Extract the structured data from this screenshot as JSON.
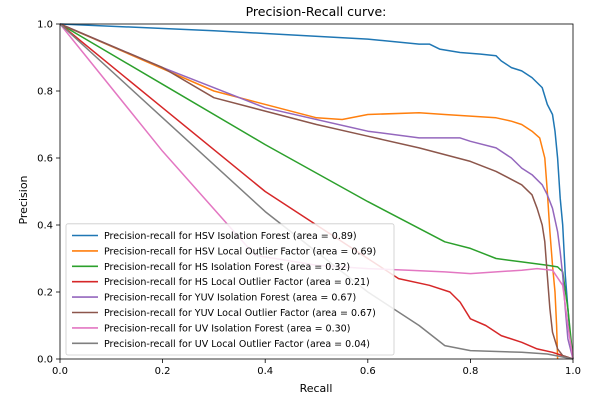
{
  "chart_data": {
    "type": "line",
    "title": "Precision-Recall curve:",
    "xlabel": "Recall",
    "ylabel": "Precision",
    "xlim": [
      0,
      1
    ],
    "ylim": [
      0,
      1
    ],
    "x_ticks": [
      "0.0",
      "0.2",
      "0.4",
      "0.6",
      "0.8",
      "1.0"
    ],
    "y_ticks": [
      "0.0",
      "0.2",
      "0.4",
      "0.6",
      "0.8",
      "1.0"
    ],
    "grid": false,
    "legend_position": "lower-left",
    "series": [
      {
        "name": "Precision-recall for HSV Isolation Forest (area = 0.89)",
        "color": "#1f77b4",
        "points": [
          [
            0.0,
            1.0
          ],
          [
            0.3,
            0.98
          ],
          [
            0.6,
            0.955
          ],
          [
            0.7,
            0.94
          ],
          [
            0.72,
            0.94
          ],
          [
            0.74,
            0.925
          ],
          [
            0.78,
            0.915
          ],
          [
            0.82,
            0.91
          ],
          [
            0.85,
            0.905
          ],
          [
            0.86,
            0.89
          ],
          [
            0.88,
            0.87
          ],
          [
            0.9,
            0.86
          ],
          [
            0.92,
            0.84
          ],
          [
            0.94,
            0.81
          ],
          [
            0.95,
            0.76
          ],
          [
            0.96,
            0.73
          ],
          [
            0.965,
            0.68
          ],
          [
            0.97,
            0.6
          ],
          [
            0.975,
            0.48
          ],
          [
            0.98,
            0.4
          ],
          [
            0.985,
            0.25
          ],
          [
            0.99,
            0.15
          ],
          [
            0.995,
            0.06
          ],
          [
            1.0,
            0.0
          ]
        ]
      },
      {
        "name": "Precision-recall for HSV Local Outlier Factor (area = 0.69)",
        "color": "#ff7f0e",
        "points": [
          [
            0.0,
            1.0
          ],
          [
            0.3,
            0.8
          ],
          [
            0.5,
            0.72
          ],
          [
            0.55,
            0.715
          ],
          [
            0.6,
            0.73
          ],
          [
            0.7,
            0.735
          ],
          [
            0.75,
            0.73
          ],
          [
            0.8,
            0.725
          ],
          [
            0.85,
            0.72
          ],
          [
            0.88,
            0.71
          ],
          [
            0.9,
            0.7
          ],
          [
            0.92,
            0.68
          ],
          [
            0.935,
            0.66
          ],
          [
            0.945,
            0.6
          ],
          [
            0.95,
            0.5
          ],
          [
            0.955,
            0.38
          ],
          [
            0.96,
            0.28
          ],
          [
            0.965,
            0.2
          ],
          [
            0.968,
            0.1
          ],
          [
            0.97,
            0.0
          ]
        ]
      },
      {
        "name": "Precision-recall for HS Isolation Forest (area = 0.32)",
        "color": "#2ca02c",
        "points": [
          [
            0.0,
            1.0
          ],
          [
            0.2,
            0.82
          ],
          [
            0.4,
            0.64
          ],
          [
            0.6,
            0.47
          ],
          [
            0.75,
            0.35
          ],
          [
            0.8,
            0.33
          ],
          [
            0.85,
            0.3
          ],
          [
            0.9,
            0.29
          ],
          [
            0.95,
            0.28
          ],
          [
            0.97,
            0.275
          ],
          [
            0.98,
            0.26
          ],
          [
            0.99,
            0.15
          ],
          [
            1.0,
            0.0
          ]
        ]
      },
      {
        "name": "Precision-recall for HS Local Outlier Factor (area = 0.21)",
        "color": "#d62728",
        "points": [
          [
            0.0,
            1.0
          ],
          [
            0.2,
            0.75
          ],
          [
            0.4,
            0.5
          ],
          [
            0.6,
            0.3
          ],
          [
            0.66,
            0.24
          ],
          [
            0.72,
            0.22
          ],
          [
            0.76,
            0.2
          ],
          [
            0.78,
            0.17
          ],
          [
            0.8,
            0.12
          ],
          [
            0.83,
            0.1
          ],
          [
            0.86,
            0.07
          ],
          [
            0.9,
            0.05
          ],
          [
            0.93,
            0.03
          ],
          [
            0.96,
            0.02
          ],
          [
            0.98,
            0.01
          ],
          [
            1.0,
            0.0
          ]
        ]
      },
      {
        "name": "Precision-recall for YUV Isolation Forest (area = 0.67)",
        "color": "#9467bd",
        "points": [
          [
            0.0,
            1.0
          ],
          [
            0.2,
            0.87
          ],
          [
            0.4,
            0.75
          ],
          [
            0.6,
            0.68
          ],
          [
            0.7,
            0.66
          ],
          [
            0.78,
            0.66
          ],
          [
            0.8,
            0.65
          ],
          [
            0.85,
            0.63
          ],
          [
            0.88,
            0.6
          ],
          [
            0.9,
            0.57
          ],
          [
            0.92,
            0.55
          ],
          [
            0.94,
            0.52
          ],
          [
            0.95,
            0.49
          ],
          [
            0.96,
            0.45
          ],
          [
            0.97,
            0.38
          ],
          [
            0.975,
            0.32
          ],
          [
            0.98,
            0.25
          ],
          [
            0.985,
            0.15
          ],
          [
            0.99,
            0.06
          ],
          [
            1.0,
            0.0
          ]
        ]
      },
      {
        "name": "Precision-recall for YUV Local Outlier Factor (area = 0.67)",
        "color": "#8c564b",
        "points": [
          [
            0.0,
            1.0
          ],
          [
            0.2,
            0.87
          ],
          [
            0.3,
            0.78
          ],
          [
            0.4,
            0.74
          ],
          [
            0.5,
            0.7
          ],
          [
            0.6,
            0.665
          ],
          [
            0.7,
            0.63
          ],
          [
            0.8,
            0.59
          ],
          [
            0.85,
            0.56
          ],
          [
            0.9,
            0.52
          ],
          [
            0.92,
            0.49
          ],
          [
            0.93,
            0.45
          ],
          [
            0.94,
            0.4
          ],
          [
            0.945,
            0.35
          ],
          [
            0.95,
            0.25
          ],
          [
            0.955,
            0.15
          ],
          [
            0.96,
            0.08
          ],
          [
            0.97,
            0.03
          ],
          [
            0.98,
            0.01
          ],
          [
            1.0,
            0.0
          ]
        ]
      },
      {
        "name": "Precision-recall for UV Isolation Forest (area = 0.30)",
        "color": "#e377c2",
        "points": [
          [
            0.0,
            1.0
          ],
          [
            0.2,
            0.62
          ],
          [
            0.38,
            0.31
          ],
          [
            0.5,
            0.28
          ],
          [
            0.6,
            0.27
          ],
          [
            0.68,
            0.265
          ],
          [
            0.75,
            0.26
          ],
          [
            0.8,
            0.255
          ],
          [
            0.85,
            0.26
          ],
          [
            0.9,
            0.265
          ],
          [
            0.93,
            0.27
          ],
          [
            0.96,
            0.265
          ],
          [
            0.98,
            0.22
          ],
          [
            0.99,
            0.1
          ],
          [
            1.0,
            0.0
          ]
        ]
      },
      {
        "name": "Precision-recall for UV Local Outlier Factor (area = 0.04)",
        "color": "#7f7f7f",
        "points": [
          [
            0.0,
            1.0
          ],
          [
            0.2,
            0.72
          ],
          [
            0.4,
            0.44
          ],
          [
            0.6,
            0.2
          ],
          [
            0.7,
            0.1
          ],
          [
            0.75,
            0.04
          ],
          [
            0.8,
            0.025
          ],
          [
            0.9,
            0.02
          ],
          [
            0.95,
            0.015
          ],
          [
            1.0,
            0.0
          ]
        ]
      }
    ]
  }
}
